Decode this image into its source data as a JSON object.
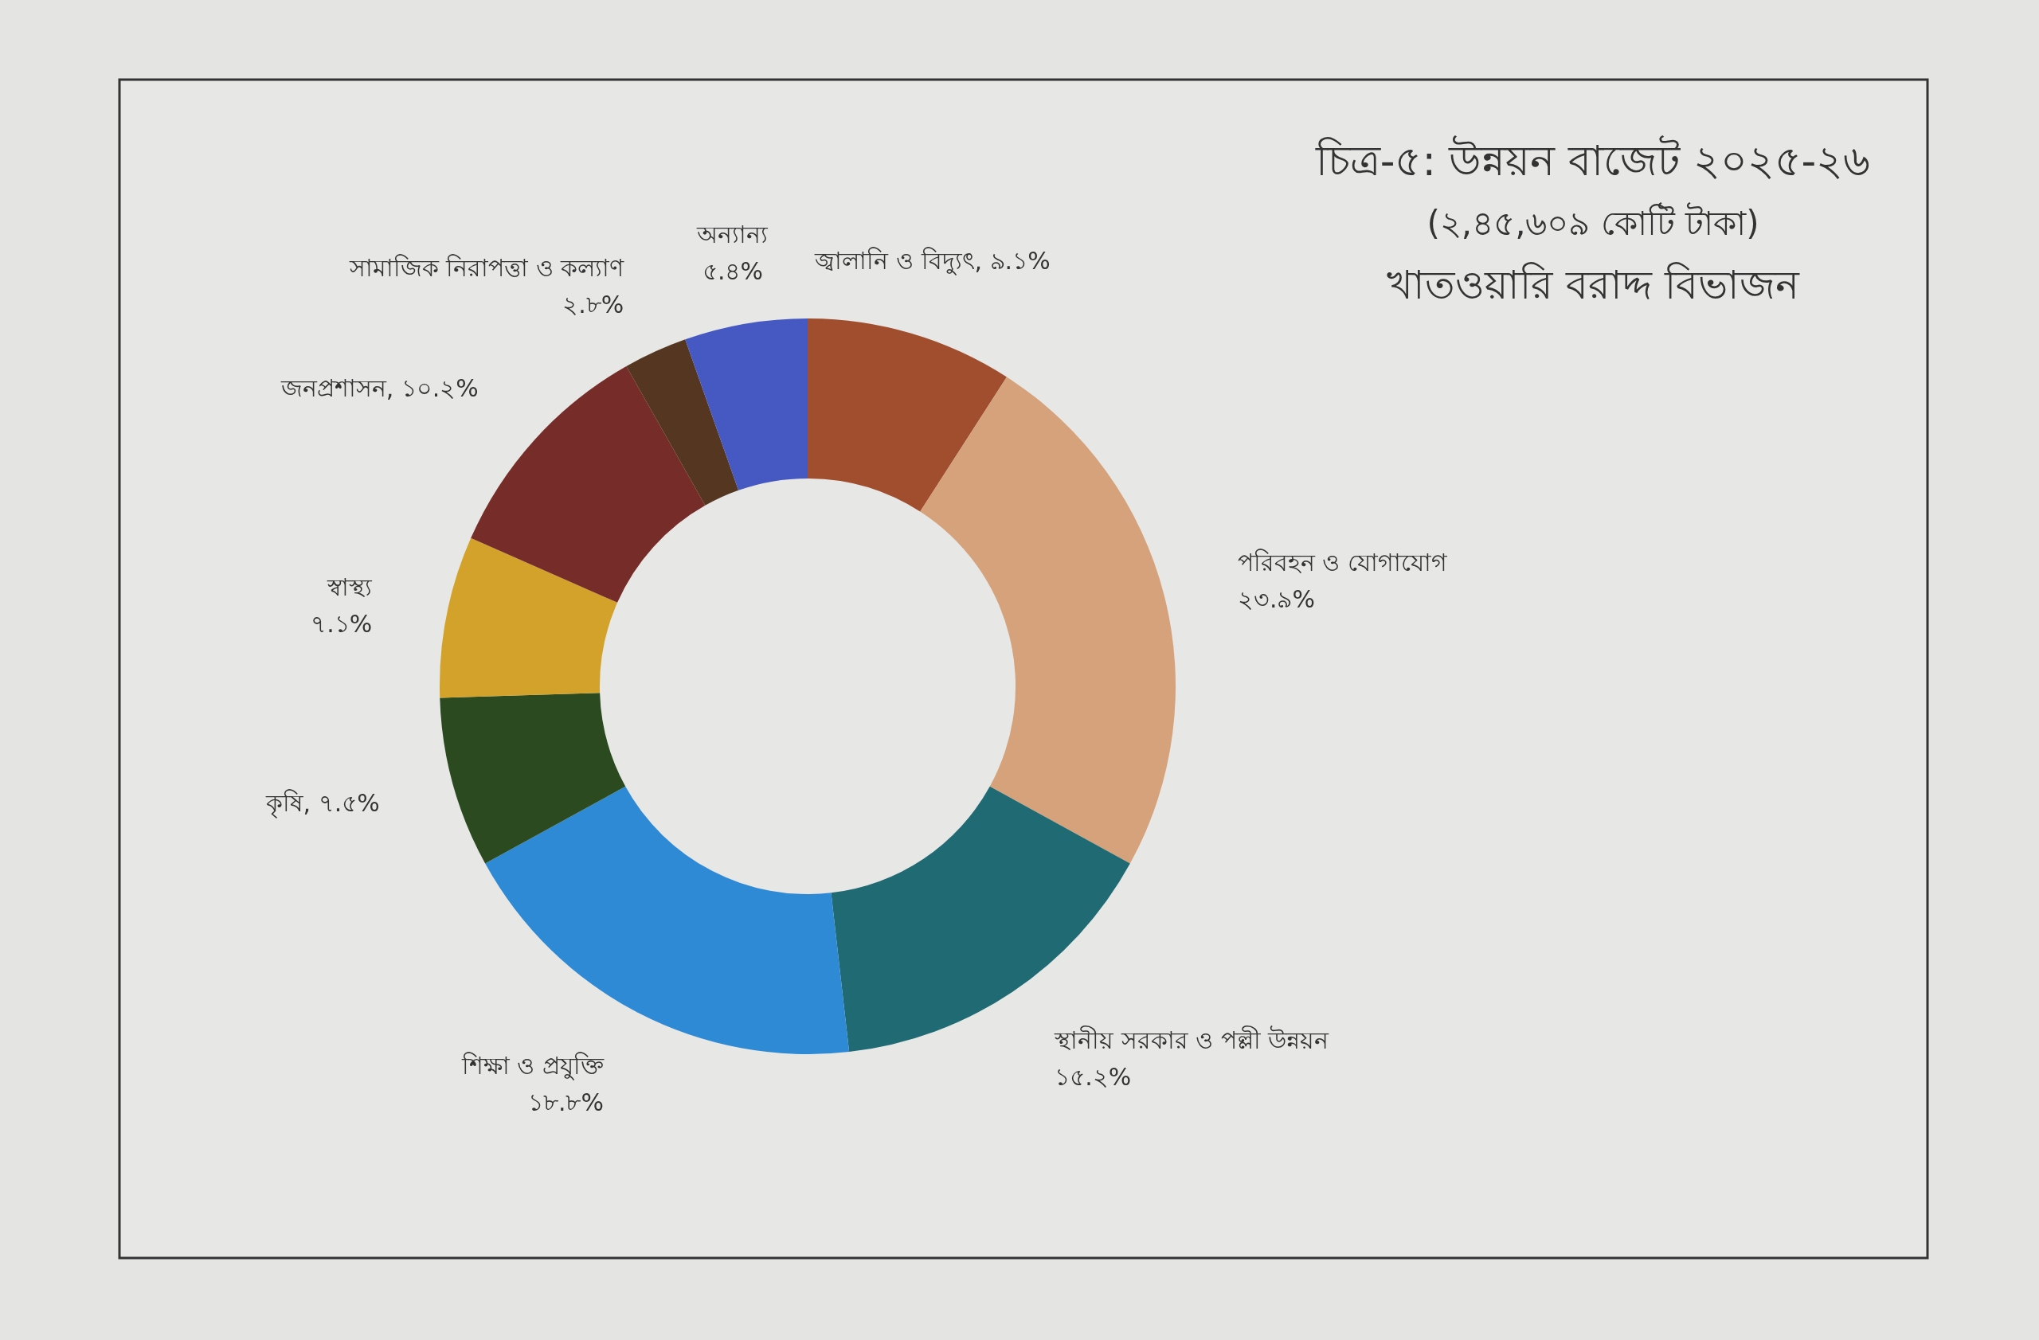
{
  "chart_data": {
    "type": "donut",
    "title": "চিত্র-৫: উন্নয়ন বাজেট ২০২৫-২৬",
    "subtitle": "(২,৪৫,৬০৯ কোটি টাকা)",
    "annotations": [
      "খাতওয়ারি বরাদ্দ বিভাজন"
    ],
    "categories": [
      "জ্বালানি ও বিদ্যুৎ",
      "পরিবহন ও যোগাযোগ",
      "স্থানীয় সরকার ও পল্লী উন্নয়ন",
      "শিক্ষা ও প্রযুক্তি",
      "কৃষি",
      "স্বাস্থ্য",
      "জনপ্রশাসন",
      "সামাজিক নিরাপত্তা ও কল্যাণ",
      "অন্যান্য"
    ],
    "values": [
      9.1,
      23.9,
      15.2,
      18.8,
      7.5,
      7.1,
      10.2,
      2.8,
      5.4
    ],
    "value_labels": [
      "৯.১%",
      "২৩.৯%",
      "১৫.২%",
      "১৮.৮%",
      "৭.৫%",
      "৭.১%",
      "১০.২%",
      "২.৮%",
      "৫.৪%"
    ],
    "colors": [
      "#a04e2e",
      "#d5a27c",
      "#1f6a73",
      "#2f8ad6",
      "#2b4a1f",
      "#d3a22a",
      "#762c28",
      "#553620",
      "#4658c2"
    ]
  }
}
